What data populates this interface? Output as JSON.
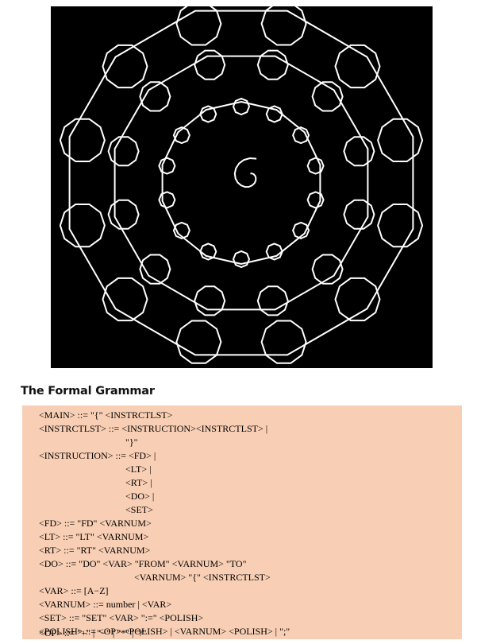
{
  "heading": "The Formal Grammar",
  "grammar_lines": [
    "<MAIN> ::= \"{\" <INSTRCTLST>",
    "<INSTRCTLST> ::= <INSTRUCTION><INSTRCTLST> |",
    "\"}\"",
    "<INSTRUCTION> ::= <FD> |",
    "<LT> |",
    "<RT> |",
    "<DO> |",
    "<SET>",
    "<FD> ::= \"FD\" <VARNUM>",
    "<LT> ::= \"LT\" <VARNUM>",
    "<RT> ::= \"RT\" <VARNUM>",
    "<DO> ::= \"DO\" <VAR> \"FROM\" <VARNUM> \"TO\"",
    "<VARNUM> \"{\" <INSTRCTLST>",
    "<VAR> ::= [A−Z]",
    "<VARNUM> ::= number | <VAR>",
    "<SET> ::= \"SET\" <VAR> \":=\" <POLISH>",
    "<POLISH> ::= <OP> <POLISH> | <VARNUM> <POLISH> | \";\"",
    "<OP> ::= \"+\" | \"−\" | \"*\" | \"/\""
  ],
  "colors": {
    "figure_background": "#000000",
    "figure_stroke": "#ffffff",
    "grammar_background": "#f8cfb4"
  }
}
